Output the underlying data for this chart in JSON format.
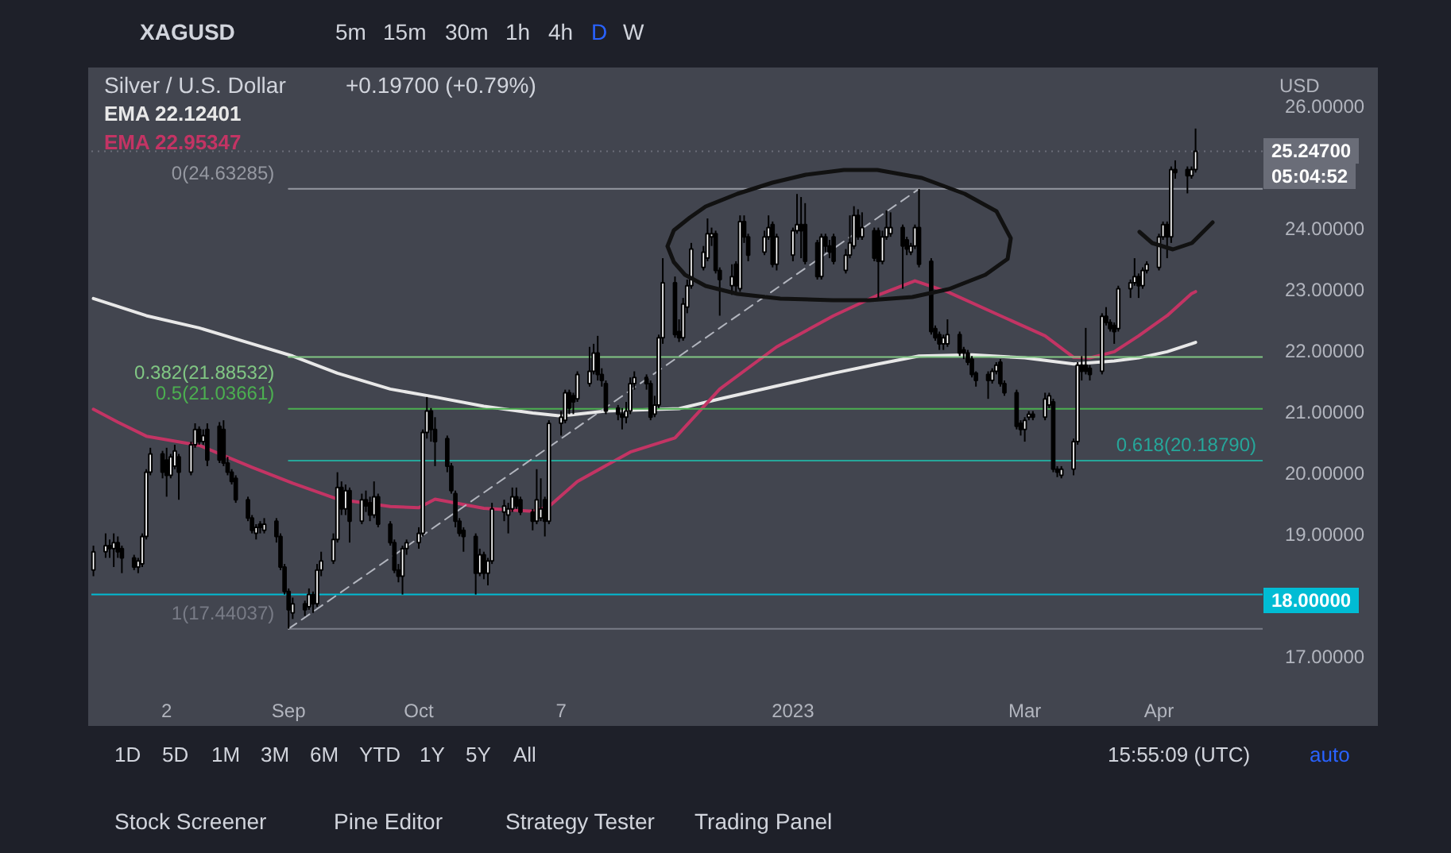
{
  "chart_data": {
    "type": "candlestick",
    "title": "Silver / U.S. Dollar",
    "subtitle": "+0.19700 (+0.79%)",
    "xlim": [
      "2022-07-14T12:00",
      "2023-04-28T12:00"
    ],
    "ylim": [
      16.67,
      26.54
    ],
    "xticks": [
      {
        "value": "2022-08-02",
        "label": "2"
      },
      {
        "value": "2022-09-01",
        "label": "Sep"
      },
      {
        "value": "2022-10-03",
        "label": "Oct"
      },
      {
        "value": "2022-11-07",
        "label": "7"
      },
      {
        "value": "2023-01-03",
        "label": "2023"
      },
      {
        "value": "2023-03-01",
        "label": "Mar"
      },
      {
        "value": "2023-04-03",
        "label": "Apr"
      }
    ],
    "yticks": [
      {
        "value": 17,
        "label": "17.00000"
      },
      {
        "value": 18,
        "label": null
      },
      {
        "value": 19,
        "label": "19.00000"
      },
      {
        "value": 20,
        "label": "20.00000"
      },
      {
        "value": 21,
        "label": "21.00000"
      },
      {
        "value": 22,
        "label": "22.00000"
      },
      {
        "value": 23,
        "label": "23.00000"
      },
      {
        "value": 24,
        "label": "24.00000"
      },
      {
        "value": 26,
        "label": "26.00000"
      }
    ],
    "grid": false,
    "legend": "top left",
    "color": "#000000",
    "x": [
      "2022-07-15",
      "2022-07-18",
      "2022-07-19",
      "2022-07-20",
      "2022-07-21",
      "2022-07-22",
      "2022-07-25",
      "2022-07-26",
      "2022-07-27",
      "2022-07-28",
      "2022-07-29",
      "2022-08-01",
      "2022-08-02",
      "2022-08-03",
      "2022-08-04",
      "2022-08-05",
      "2022-08-08",
      "2022-08-09",
      "2022-08-10",
      "2022-08-11",
      "2022-08-12",
      "2022-08-15",
      "2022-08-16",
      "2022-08-17",
      "2022-08-18",
      "2022-08-19",
      "2022-08-22",
      "2022-08-23",
      "2022-08-24",
      "2022-08-25",
      "2022-08-26",
      "2022-08-29",
      "2022-08-30",
      "2022-08-31",
      "2022-09-01",
      "2022-09-02",
      "2022-09-05",
      "2022-09-06",
      "2022-09-07",
      "2022-09-08",
      "2022-09-09",
      "2022-09-12",
      "2022-09-13",
      "2022-09-14",
      "2022-09-15",
      "2022-09-16",
      "2022-09-19",
      "2022-09-20",
      "2022-09-21",
      "2022-09-22",
      "2022-09-23",
      "2022-09-26",
      "2022-09-27",
      "2022-09-28",
      "2022-09-29",
      "2022-09-30",
      "2022-10-03",
      "2022-10-04",
      "2022-10-05",
      "2022-10-06",
      "2022-10-07",
      "2022-10-10",
      "2022-10-11",
      "2022-10-12",
      "2022-10-13",
      "2022-10-14",
      "2022-10-17",
      "2022-10-18",
      "2022-10-19",
      "2022-10-20",
      "2022-10-21",
      "2022-10-24",
      "2022-10-25",
      "2022-10-26",
      "2022-10-27",
      "2022-10-28",
      "2022-10-31",
      "2022-11-01",
      "2022-11-02",
      "2022-11-03",
      "2022-11-04",
      "2022-11-07",
      "2022-11-08",
      "2022-11-09",
      "2022-11-10",
      "2022-11-11",
      "2022-11-14",
      "2022-11-15",
      "2022-11-16",
      "2022-11-17",
      "2022-11-18",
      "2022-11-21",
      "2022-11-22",
      "2022-11-23",
      "2022-11-24",
      "2022-11-25",
      "2022-11-28",
      "2022-11-29",
      "2022-11-30",
      "2022-12-01",
      "2022-12-02",
      "2022-12-05",
      "2022-12-06",
      "2022-12-07",
      "2022-12-08",
      "2022-12-09",
      "2022-12-12",
      "2022-12-13",
      "2022-12-14",
      "2022-12-15",
      "2022-12-16",
      "2022-12-19",
      "2022-12-20",
      "2022-12-21",
      "2022-12-22",
      "2022-12-23",
      "2022-12-27",
      "2022-12-28",
      "2022-12-29",
      "2022-12-30",
      "2023-01-03",
      "2023-01-04",
      "2023-01-05",
      "2023-01-06",
      "2023-01-09",
      "2023-01-10",
      "2023-01-11",
      "2023-01-12",
      "2023-01-13",
      "2023-01-16",
      "2023-01-17",
      "2023-01-18",
      "2023-01-19",
      "2023-01-20",
      "2023-01-23",
      "2023-01-24",
      "2023-01-25",
      "2023-01-26",
      "2023-01-27",
      "2023-01-30",
      "2023-01-31",
      "2023-02-01",
      "2023-02-02",
      "2023-02-03",
      "2023-02-06",
      "2023-02-07",
      "2023-02-08",
      "2023-02-09",
      "2023-02-10",
      "2023-02-13",
      "2023-02-14",
      "2023-02-15",
      "2023-02-16",
      "2023-02-17",
      "2023-02-20",
      "2023-02-21",
      "2023-02-22",
      "2023-02-23",
      "2023-02-24",
      "2023-02-27",
      "2023-02-28",
      "2023-03-01",
      "2023-03-02",
      "2023-03-03",
      "2023-03-06",
      "2023-03-07",
      "2023-03-08",
      "2023-03-09",
      "2023-03-10",
      "2023-03-13",
      "2023-03-14",
      "2023-03-15",
      "2023-03-16",
      "2023-03-17",
      "2023-03-20",
      "2023-03-21",
      "2023-03-22",
      "2023-03-23",
      "2023-03-24",
      "2023-03-27",
      "2023-03-28",
      "2023-03-29",
      "2023-03-30",
      "2023-03-31",
      "2023-04-03",
      "2023-04-04",
      "2023-04-05",
      "2023-04-06",
      "2023-04-07",
      "2023-04-10",
      "2023-04-11",
      "2023-04-12"
    ],
    "ohlc": [
      [
        18.4,
        18.8,
        18.3,
        18.7
      ],
      [
        18.7,
        19.0,
        18.6,
        18.8
      ],
      [
        18.8,
        18.9,
        18.6,
        18.75
      ],
      [
        18.75,
        19.0,
        18.45,
        18.85
      ],
      [
        18.85,
        18.95,
        18.6,
        18.7
      ],
      [
        18.75,
        18.8,
        18.35,
        18.6
      ],
      [
        18.6,
        18.65,
        18.4,
        18.45
      ],
      [
        18.45,
        18.6,
        18.35,
        18.55
      ],
      [
        18.5,
        19.0,
        18.45,
        18.95
      ],
      [
        18.95,
        20.05,
        18.9,
        20.0
      ],
      [
        20.0,
        20.4,
        19.95,
        20.3
      ],
      [
        20.3,
        20.35,
        19.9,
        20.0
      ],
      [
        20.2,
        20.4,
        19.6,
        19.95
      ],
      [
        19.95,
        20.3,
        19.9,
        20.25
      ],
      [
        20.1,
        20.45,
        20.05,
        20.35
      ],
      [
        20.25,
        20.3,
        19.55,
        20.0
      ],
      [
        20.0,
        20.5,
        19.95,
        20.45
      ],
      [
        20.45,
        20.8,
        20.4,
        20.7
      ],
      [
        20.7,
        20.75,
        20.45,
        20.5
      ],
      [
        20.5,
        20.7,
        20.45,
        20.6
      ],
      [
        20.7,
        20.8,
        20.1,
        20.2
      ],
      [
        20.75,
        20.82,
        20.15,
        20.2
      ],
      [
        20.7,
        20.85,
        20.1,
        20.15
      ],
      [
        20.15,
        20.25,
        19.95,
        20.0
      ],
      [
        20.0,
        20.05,
        19.8,
        19.85
      ],
      [
        19.9,
        19.95,
        19.5,
        19.55
      ],
      [
        19.55,
        19.6,
        19.2,
        19.25
      ],
      [
        19.25,
        19.3,
        19.0,
        19.05
      ],
      [
        19.0,
        19.15,
        18.9,
        19.1
      ],
      [
        19.15,
        19.2,
        19.0,
        19.1
      ],
      [
        19.05,
        19.25,
        19.0,
        19.15
      ],
      [
        19.2,
        19.25,
        18.85,
        18.95
      ],
      [
        18.95,
        19.0,
        18.4,
        18.45
      ],
      [
        18.45,
        18.5,
        18.0,
        18.05
      ],
      [
        18.05,
        18.1,
        17.44037,
        17.75
      ],
      [
        17.7,
        17.95,
        17.6,
        17.85
      ],
      [
        17.85,
        17.9,
        17.65,
        17.75
      ],
      [
        17.8,
        18.1,
        17.75,
        18.0
      ],
      [
        18.0,
        18.05,
        17.7,
        17.85
      ],
      [
        17.85,
        18.5,
        17.8,
        18.4
      ],
      [
        18.4,
        18.7,
        18.3,
        18.55
      ],
      [
        18.55,
        19.0,
        18.5,
        18.9
      ],
      [
        18.9,
        20.0,
        18.85,
        19.75
      ],
      [
        19.75,
        19.85,
        19.3,
        19.4
      ],
      [
        19.4,
        19.8,
        19.3,
        19.7
      ],
      [
        19.7,
        19.75,
        18.85,
        19.2
      ],
      [
        19.2,
        19.65,
        19.15,
        19.55
      ],
      [
        19.55,
        19.7,
        19.35,
        19.45
      ],
      [
        19.5,
        19.6,
        19.2,
        19.3
      ],
      [
        19.3,
        19.85,
        19.25,
        19.6
      ],
      [
        19.6,
        19.65,
        19.1,
        19.15
      ],
      [
        19.15,
        19.2,
        18.8,
        18.85
      ],
      [
        18.85,
        18.9,
        18.35,
        18.4
      ],
      [
        18.4,
        18.5,
        18.2,
        18.3
      ],
      [
        18.3,
        18.8,
        18.0,
        18.75
      ],
      [
        18.75,
        18.9,
        18.65,
        18.85
      ],
      [
        18.85,
        19.1,
        18.75,
        19.0
      ],
      [
        19.0,
        20.7,
        18.95,
        20.65
      ],
      [
        20.65,
        21.23,
        20.55,
        21.0
      ],
      [
        21.0,
        21.05,
        20.5,
        20.7
      ],
      [
        20.7,
        20.9,
        20.1,
        20.5
      ],
      [
        20.55,
        20.6,
        20.0,
        20.1
      ],
      [
        20.1,
        20.15,
        19.65,
        19.7
      ],
      [
        19.65,
        19.7,
        19.1,
        19.2
      ],
      [
        19.2,
        19.25,
        18.95,
        19.0
      ],
      [
        19.05,
        19.1,
        18.7,
        18.95
      ],
      [
        18.95,
        19.0,
        18.0,
        18.35
      ],
      [
        18.35,
        18.75,
        18.3,
        18.65
      ],
      [
        18.65,
        18.7,
        18.25,
        18.35
      ],
      [
        18.35,
        18.6,
        18.15,
        18.55
      ],
      [
        18.55,
        19.5,
        18.5,
        19.4
      ],
      [
        19.35,
        19.55,
        19.2,
        19.45
      ],
      [
        19.3,
        19.5,
        19.0,
        19.4
      ],
      [
        19.4,
        19.75,
        19.35,
        19.6
      ],
      [
        19.6,
        19.75,
        19.4,
        19.45
      ],
      [
        19.55,
        19.6,
        19.3,
        19.35
      ],
      [
        19.35,
        19.4,
        19.05,
        19.2
      ],
      [
        19.2,
        20.05,
        19.15,
        19.55
      ],
      [
        19.25,
        19.9,
        19.2,
        19.4
      ],
      [
        19.55,
        19.6,
        18.95,
        19.2
      ],
      [
        19.2,
        20.85,
        19.15,
        20.8
      ],
      [
        20.8,
        21.0,
        20.6,
        20.9
      ],
      [
        20.85,
        21.35,
        20.8,
        21.3
      ],
      [
        21.3,
        21.35,
        20.95,
        21.05
      ],
      [
        21.25,
        21.3,
        20.95,
        21.15
      ],
      [
        21.2,
        21.65,
        21.15,
        21.6
      ],
      [
        21.45,
        22.05,
        21.4,
        21.65
      ],
      [
        21.65,
        22.1,
        21.6,
        21.95
      ],
      [
        21.95,
        22.23,
        21.5,
        21.6
      ],
      [
        21.6,
        21.7,
        21.4,
        21.5
      ],
      [
        21.45,
        21.5,
        20.95,
        21.0
      ],
      [
        21.05,
        21.1,
        20.85,
        20.95
      ],
      [
        20.95,
        21.05,
        20.7,
        20.9
      ],
      [
        20.9,
        21.15,
        20.8,
        21.0
      ],
      [
        21.0,
        21.55,
        20.95,
        21.45
      ],
      [
        21.45,
        21.65,
        21.35,
        21.55
      ],
      [
        21.55,
        21.6,
        21.35,
        21.45
      ],
      [
        21.45,
        21.5,
        20.85,
        20.9
      ],
      [
        20.95,
        21.25,
        20.9,
        21.1
      ],
      [
        21.1,
        22.25,
        21.05,
        22.2
      ],
      [
        22.2,
        23.5,
        22.1,
        23.1
      ],
      [
        23.1,
        23.2,
        22.2,
        22.25
      ],
      [
        22.3,
        22.5,
        22.13,
        22.2
      ],
      [
        22.2,
        22.85,
        22.15,
        22.75
      ],
      [
        22.7,
        23.15,
        22.6,
        23.05
      ],
      [
        23.05,
        23.75,
        23.0,
        23.65
      ],
      [
        23.35,
        23.7,
        23.3,
        23.6
      ],
      [
        23.5,
        24.15,
        23.45,
        23.9
      ],
      [
        23.85,
        24.0,
        23.7,
        23.9
      ],
      [
        23.9,
        23.95,
        23.25,
        23.3
      ],
      [
        23.3,
        23.35,
        22.56,
        23.15
      ],
      [
        23.05,
        23.4,
        22.9,
        23.2
      ],
      [
        23.4,
        23.45,
        22.95,
        23.05
      ],
      [
        23.0,
        24.2,
        22.95,
        24.1
      ],
      [
        24.1,
        24.2,
        23.75,
        23.85
      ],
      [
        23.85,
        23.9,
        23.45,
        23.55
      ],
      [
        23.6,
        23.95,
        23.55,
        23.85
      ],
      [
        23.85,
        24.2,
        23.8,
        24.0
      ],
      [
        24.05,
        24.1,
        23.35,
        23.4
      ],
      [
        23.4,
        23.9,
        23.3,
        23.85
      ],
      [
        23.55,
        24.0,
        23.45,
        23.95
      ],
      [
        23.95,
        24.55,
        23.9,
        24.05
      ],
      [
        24.05,
        24.5,
        23.5,
        23.95
      ],
      [
        24.05,
        24.4,
        23.4,
        23.45
      ],
      [
        23.75,
        23.8,
        23.15,
        23.2
      ],
      [
        23.2,
        23.9,
        23.15,
        23.85
      ],
      [
        23.85,
        23.9,
        23.6,
        23.7
      ],
      [
        23.7,
        23.8,
        23.5,
        23.6
      ],
      [
        23.85,
        23.9,
        23.4,
        23.45
      ],
      [
        23.3,
        23.65,
        23.25,
        23.55
      ],
      [
        23.55,
        24.2,
        23.5,
        23.75
      ],
      [
        23.7,
        24.35,
        23.65,
        24.2
      ],
      [
        24.2,
        24.3,
        23.8,
        23.85
      ],
      [
        23.85,
        24.25,
        23.8,
        24.0
      ],
      [
        23.95,
        24.0,
        23.45,
        23.5
      ],
      [
        23.95,
        24.0,
        22.82,
        23.45
      ],
      [
        23.45,
        23.95,
        23.4,
        23.85
      ],
      [
        23.85,
        24.28,
        23.8,
        24.0
      ],
      [
        23.9,
        24.25,
        23.85,
        24.0
      ],
      [
        24.0,
        24.05,
        23.0,
        23.7
      ],
      [
        23.8,
        23.85,
        23.55,
        23.65
      ],
      [
        23.6,
        23.75,
        23.55,
        23.7
      ],
      [
        23.7,
        24.05,
        23.65,
        24.0
      ],
      [
        24.0,
        24.63285,
        23.35,
        23.4
      ],
      [
        23.45,
        23.5,
        22.25,
        22.3
      ],
      [
        22.35,
        22.4,
        22.15,
        22.2
      ],
      [
        22.25,
        22.3,
        22.0,
        22.1
      ],
      [
        22.1,
        22.25,
        22.0,
        22.2
      ],
      [
        22.1,
        22.5,
        22.05,
        22.25
      ],
      [
        22.25,
        22.3,
        21.9,
        21.95
      ],
      [
        22.0,
        22.05,
        21.85,
        21.95
      ],
      [
        21.95,
        22.0,
        21.75,
        21.8
      ],
      [
        21.85,
        21.9,
        21.55,
        21.6
      ],
      [
        21.62,
        21.65,
        21.4,
        21.5
      ],
      [
        21.6,
        21.65,
        21.2,
        21.5
      ],
      [
        21.5,
        21.7,
        21.45,
        21.65
      ],
      [
        21.65,
        21.8,
        21.6,
        21.75
      ],
      [
        21.8,
        21.85,
        21.4,
        21.45
      ],
      [
        21.45,
        21.5,
        21.25,
        21.3
      ],
      [
        21.3,
        21.35,
        20.7,
        20.75
      ],
      [
        20.8,
        20.85,
        20.6,
        20.7
      ],
      [
        20.7,
        20.9,
        20.5,
        20.85
      ],
      [
        20.9,
        21.0,
        20.85,
        20.95
      ],
      [
        20.95,
        21.0,
        20.85,
        20.9
      ],
      [
        20.9,
        21.3,
        20.85,
        21.2
      ],
      [
        21.1,
        21.3,
        21.05,
        21.25
      ],
      [
        21.15,
        21.2,
        20.0,
        20.05
      ],
      [
        20.05,
        20.1,
        19.92,
        20.0
      ],
      [
        19.95,
        20.1,
        19.9,
        20.05
      ],
      [
        20.05,
        20.55,
        19.95,
        20.5
      ],
      [
        20.5,
        21.8,
        20.45,
        21.75
      ],
      [
        21.75,
        21.9,
        21.5,
        21.65
      ],
      [
        21.75,
        22.36,
        21.6,
        21.65
      ],
      [
        21.7,
        21.75,
        21.5,
        21.6
      ],
      [
        21.65,
        22.6,
        21.6,
        22.55
      ],
      [
        22.55,
        22.7,
        22.4,
        22.45
      ],
      [
        22.45,
        22.5,
        22.3,
        22.35
      ],
      [
        22.4,
        22.45,
        22.1,
        22.3
      ],
      [
        22.35,
        23.05,
        22.3,
        23.0
      ],
      [
        23.0,
        23.15,
        22.85,
        23.1
      ],
      [
        23.1,
        23.5,
        23.05,
        23.2
      ],
      [
        23.2,
        23.25,
        22.85,
        23.05
      ],
      [
        23.05,
        23.35,
        23.0,
        23.3
      ],
      [
        23.3,
        23.45,
        23.25,
        23.4
      ],
      [
        23.35,
        23.9,
        23.3,
        23.85
      ],
      [
        23.85,
        24.1,
        23.8,
        24.05
      ],
      [
        24.05,
        24.1,
        23.5,
        23.85
      ],
      [
        23.85,
        25.0,
        23.75,
        24.95
      ],
      [
        24.95,
        25.1,
        24.8,
        24.9
      ],
      [
        24.95,
        25.0,
        24.56,
        24.85
      ],
      [
        24.85,
        25.0,
        24.8,
        24.95
      ],
      [
        24.95,
        25.62,
        24.9,
        25.247
      ]
    ],
    "colors": [
      "#ffffff",
      "#ffffff",
      "#000000",
      "#ffffff",
      "#000000",
      "#000000",
      "#000000",
      "#ffffff",
      "#ffffff",
      "#ffffff",
      "#ffffff",
      "#000000",
      "#000000",
      "#ffffff",
      "#ffffff",
      "#000000",
      "#ffffff",
      "#ffffff",
      "#000000",
      "#ffffff",
      "#000000",
      "#000000",
      "#000000",
      "#000000",
      "#000000",
      "#000000",
      "#000000",
      "#000000",
      "#ffffff",
      "#000000",
      "#ffffff",
      "#000000",
      "#000000",
      "#000000",
      "#000000",
      "#ffffff",
      "#000000",
      "#ffffff",
      "#000000",
      "#ffffff",
      "#ffffff",
      "#ffffff",
      "#ffffff",
      "#000000",
      "#ffffff",
      "#000000",
      "#ffffff",
      "#000000",
      "#000000",
      "#ffffff",
      "#000000",
      "#000000",
      "#000000",
      "#000000",
      "#ffffff",
      "#ffffff",
      "#ffffff",
      "#ffffff",
      "#ffffff",
      "#000000",
      "#000000",
      "#000000",
      "#000000",
      "#000000",
      "#000000",
      "#000000",
      "#000000",
      "#ffffff",
      "#000000",
      "#ffffff",
      "#ffffff",
      "#ffffff",
      "#ffffff",
      "#ffffff",
      "#000000",
      "#000000",
      "#000000",
      "#ffffff",
      "#ffffff",
      "#000000",
      "#ffffff",
      "#ffffff",
      "#ffffff",
      "#000000",
      "#000000",
      "#ffffff",
      "#ffffff",
      "#ffffff",
      "#000000",
      "#000000",
      "#000000",
      "#000000",
      "#000000",
      "#ffffff",
      "#ffffff",
      "#ffffff",
      "#000000",
      "#000000",
      "#ffffff",
      "#ffffff",
      "#ffffff",
      "#000000",
      "#000000",
      "#ffffff",
      "#ffffff",
      "#ffffff",
      "#ffffff",
      "#ffffff",
      "#ffffff",
      "#000000",
      "#000000",
      "#ffffff",
      "#000000",
      "#ffffff",
      "#000000",
      "#000000",
      "#ffffff",
      "#ffffff",
      "#000000",
      "#ffffff",
      "#ffffff",
      "#ffffff",
      "#000000",
      "#000000",
      "#000000",
      "#ffffff",
      "#000000",
      "#000000",
      "#000000",
      "#ffffff",
      "#ffffff",
      "#ffffff",
      "#000000",
      "#ffffff",
      "#000000",
      "#000000",
      "#ffffff",
      "#ffffff",
      "#ffffff",
      "#000000",
      "#000000",
      "#ffffff",
      "#ffffff",
      "#000000",
      "#000000",
      "#000000",
      "#000000",
      "#ffffff",
      "#ffffff",
      "#000000",
      "#000000",
      "#000000",
      "#000000",
      "#000000",
      "#000000",
      "#ffffff",
      "#ffffff",
      "#000000",
      "#000000",
      "#000000",
      "#000000",
      "#ffffff",
      "#ffffff",
      "#000000",
      "#ffffff",
      "#ffffff",
      "#000000",
      "#000000",
      "#ffffff",
      "#ffffff",
      "#ffffff",
      "#000000",
      "#000000",
      "#000000",
      "#ffffff",
      "#000000",
      "#000000",
      "#000000",
      "#ffffff",
      "#ffffff",
      "#ffffff",
      "#000000",
      "#ffffff",
      "#ffffff",
      "#ffffff",
      "#ffffff",
      "#000000",
      "#ffffff",
      "#000000",
      "#000000",
      "#ffffff",
      "#ffffff"
    ],
    "series": [
      {
        "type": "line",
        "name": "EMA 22.12401",
        "color": "#e8e8e8",
        "x": [
          "2022-07-15",
          "2022-07-28",
          "2022-08-10",
          "2022-08-23",
          "2022-09-02",
          "2022-09-13",
          "2022-09-26",
          "2022-10-07",
          "2022-10-19",
          "2022-10-31",
          "2022-11-07",
          "2022-11-18",
          "2022-12-06",
          "2022-12-16",
          "2022-12-30",
          "2023-01-13",
          "2023-01-24",
          "2023-02-03",
          "2023-02-16",
          "2023-03-01",
          "2023-03-13",
          "2023-03-17",
          "2023-03-23",
          "2023-03-29",
          "2023-04-05",
          "2023-04-11",
          "2023-04-12"
        ],
        "values": [
          22.84,
          22.56,
          22.36,
          22.1,
          21.9,
          21.62,
          21.36,
          21.23,
          21.08,
          20.97,
          20.92,
          21.0,
          21.04,
          21.2,
          21.41,
          21.62,
          21.77,
          21.9,
          21.92,
          21.87,
          21.77,
          21.79,
          21.82,
          21.87,
          21.97,
          22.1,
          22.12401
        ]
      },
      {
        "type": "line",
        "name": "EMA 22.95347",
        "color": "#c33464",
        "x": [
          "2022-07-15",
          "2022-07-21",
          "2022-07-28",
          "2022-08-10",
          "2022-08-23",
          "2022-09-02",
          "2022-09-13",
          "2022-09-26",
          "2022-10-03",
          "2022-10-07",
          "2022-10-19",
          "2022-10-31",
          "2022-11-04",
          "2022-11-11",
          "2022-11-24",
          "2022-12-05",
          "2022-12-16",
          "2022-12-30",
          "2023-01-13",
          "2023-01-24",
          "2023-02-02",
          "2023-02-10",
          "2023-02-23",
          "2023-03-06",
          "2023-03-13",
          "2023-03-17",
          "2023-03-23",
          "2023-03-29",
          "2023-04-05",
          "2023-04-11",
          "2023-04-12"
        ],
        "values": [
          21.03,
          20.82,
          20.59,
          20.44,
          20.08,
          19.82,
          19.56,
          19.44,
          19.42,
          19.56,
          19.41,
          19.36,
          19.44,
          19.85,
          20.33,
          20.56,
          21.36,
          22.05,
          22.56,
          22.9,
          23.13,
          22.95,
          22.56,
          22.23,
          21.88,
          21.87,
          21.97,
          22.23,
          22.56,
          22.92,
          22.95347
        ]
      },
      {
        "type": "line",
        "name": "0(24.63285)",
        "color": "#9598a1",
        "x": [
          "2022-09-01",
          "2023-04-28T12:00"
        ],
        "values": [
          24.63285,
          24.63285
        ]
      },
      {
        "type": "line",
        "name": "0.382(21.88532)",
        "color": "#81c784",
        "x": [
          "2022-09-01",
          "2023-04-28T12:00"
        ],
        "values": [
          21.88532,
          21.88532
        ]
      },
      {
        "type": "line",
        "name": "0.5(21.03661)",
        "color": "#4caf50",
        "x": [
          "2022-09-01",
          "2023-04-28T12:00"
        ],
        "values": [
          21.03661,
          21.03661
        ]
      },
      {
        "type": "line",
        "name": "0.618(20.18790)",
        "color": "#26a69a",
        "x": [
          "2022-09-01",
          "2023-04-28T12:00"
        ],
        "values": [
          20.1879,
          20.1879
        ]
      },
      {
        "type": "line",
        "name": "1(17.44037)",
        "color": "#787b86",
        "x": [
          "2022-09-01",
          "2023-04-28T12:00"
        ],
        "values": [
          17.44037,
          17.44037
        ]
      },
      {
        "type": "line",
        "color": "#b2b5be",
        "line_style": "dashed",
        "x": [
          "2022-09-01",
          "2023-02-03"
        ],
        "values": [
          17.44037,
          24.63285
        ]
      }
    ],
    "ref_lines": [
      {
        "axis": "y",
        "value": 18,
        "label": "18.00000",
        "color": "#00bcd4"
      },
      {
        "axis": "y",
        "value": 25.247,
        "label": "25.24700",
        "color": "#6a6d78",
        "line_style": "dotted"
      }
    ],
    "annotations": [
      "USD",
      "05:04:52",
      "XAGUSD",
      "5m",
      "15m",
      "30m",
      "1h",
      "4h",
      "D",
      "W",
      "1D",
      "5D",
      "1M",
      "3M",
      "6M",
      "YTD",
      "1Y",
      "5Y",
      "All",
      "15:55:09 (UTC)",
      "auto",
      "Stock Screener",
      "Pine Editor",
      "Strategy Tester",
      "Trading Panel"
    ]
  }
}
